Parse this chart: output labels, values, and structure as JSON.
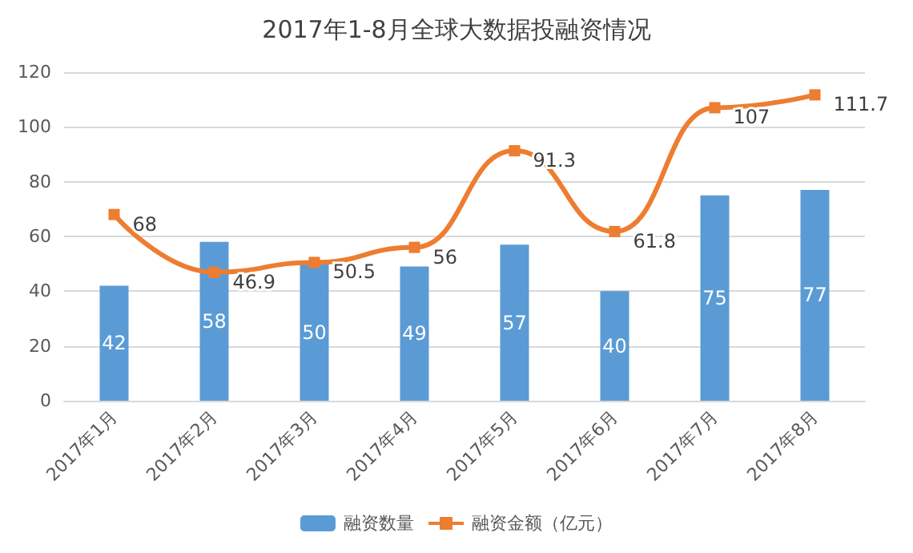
{
  "chart_data": {
    "type": "bar",
    "title": "2017年1-8月全球大数据投融资情况",
    "categories": [
      "2017年1月",
      "2017年2月",
      "2017年3月",
      "2017年4月",
      "2017年5月",
      "2017年6月",
      "2017年7月",
      "2017年8月"
    ],
    "series": [
      {
        "name": "融资数量",
        "color": "#5b9bd5",
        "values": [
          42,
          58,
          50,
          49,
          57,
          40,
          75,
          77
        ]
      },
      {
        "name": "融资金额（亿元）",
        "type": "line",
        "color": "#ed7d31",
        "values": [
          68,
          46.9,
          50.5,
          56,
          91.3,
          61.8,
          107,
          111.7
        ]
      }
    ],
    "ylim": [
      0,
      120
    ],
    "yticks": [
      0,
      20,
      40,
      60,
      80,
      100,
      120
    ],
    "grid": "y",
    "legend": "bottom",
    "marker": "square",
    "data_labels": true
  }
}
